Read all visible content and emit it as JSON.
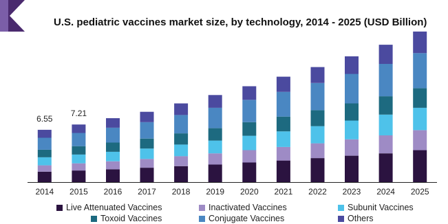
{
  "chart_data": {
    "type": "bar",
    "stacked": true,
    "title": "U.S. pediatric vaccines market size, by technology, 2014 - 2025 (USD Billion)",
    "xlabel": "",
    "ylabel": "",
    "categories": [
      "2014",
      "2015",
      "2016",
      "2017",
      "2018",
      "2019",
      "2020",
      "2021",
      "2022",
      "2023",
      "2024",
      "2025"
    ],
    "ylim": [
      0,
      18.5
    ],
    "grid": false,
    "legend_placement": "bottom",
    "totals_labels": [
      {
        "category": "2014",
        "text": "6.55"
      },
      {
        "category": "2015",
        "text": "7.21"
      }
    ],
    "series": [
      {
        "name": "Live Attenuated Vaccines",
        "color": "#2b1340",
        "values": [
          1.3,
          1.45,
          1.6,
          1.8,
          2.0,
          2.2,
          2.45,
          2.7,
          3.0,
          3.3,
          3.6,
          4.0
        ]
      },
      {
        "name": "Inactivated Vaccines",
        "color": "#9e8bc5",
        "values": [
          0.8,
          0.9,
          1.0,
          1.1,
          1.25,
          1.4,
          1.55,
          1.7,
          1.85,
          2.05,
          2.25,
          2.5
        ]
      },
      {
        "name": "Subunit Vaccines",
        "color": "#4ec2ea",
        "values": [
          1.0,
          1.1,
          1.2,
          1.3,
          1.45,
          1.6,
          1.8,
          1.95,
          2.15,
          2.35,
          2.6,
          2.8
        ]
      },
      {
        "name": "Toxoid Vaccines",
        "color": "#1d6a80",
        "values": [
          0.95,
          1.05,
          1.15,
          1.25,
          1.4,
          1.55,
          1.7,
          1.85,
          2.0,
          2.15,
          2.3,
          2.45
        ]
      },
      {
        "name": "Conjugate Vaccines",
        "color": "#4a87c2",
        "values": [
          1.5,
          1.65,
          1.85,
          2.05,
          2.3,
          2.55,
          2.8,
          3.1,
          3.4,
          3.7,
          4.05,
          4.4
        ]
      },
      {
        "name": "Others",
        "color": "#4b4a9f",
        "values": [
          1.0,
          1.06,
          1.2,
          1.3,
          1.45,
          1.6,
          1.7,
          1.9,
          2.0,
          2.2,
          2.4,
          2.7
        ]
      }
    ]
  },
  "legend": {
    "rows": [
      [
        "Live Attenuated Vaccines",
        "Inactivated Vaccines",
        "Subunit Vaccines"
      ],
      [
        "Toxoid Vaccines",
        "Conjugate Vaccines",
        "Others"
      ]
    ]
  },
  "colors": {
    "logo_purple": "#4a2a6e",
    "logo_accent": "#7b5ea8",
    "baseline": "#222222"
  }
}
